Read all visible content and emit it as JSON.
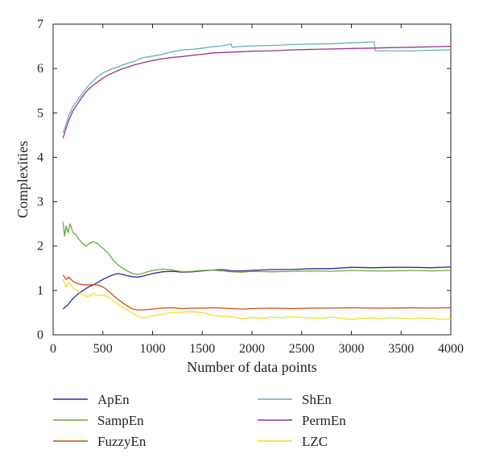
{
  "chart_data": {
    "type": "line",
    "title": "",
    "xlabel": "Number of data points",
    "ylabel": "Complexities",
    "xlim": [
      0,
      4000
    ],
    "ylim": [
      0,
      7
    ],
    "xticks": [
      0,
      500,
      1000,
      1500,
      2000,
      2500,
      3000,
      3500,
      4000
    ],
    "yticks": [
      0,
      1,
      2,
      3,
      4,
      5,
      6,
      7
    ],
    "grid": false,
    "legend_position": "below",
    "series": [
      {
        "name": "ApEn",
        "color": "#2b2a8c",
        "points": [
          [
            100,
            0.58
          ],
          [
            150,
            0.68
          ],
          [
            200,
            0.82
          ],
          [
            250,
            0.92
          ],
          [
            300,
            1.0
          ],
          [
            350,
            1.07
          ],
          [
            400,
            1.12
          ],
          [
            450,
            1.18
          ],
          [
            500,
            1.25
          ],
          [
            550,
            1.3
          ],
          [
            600,
            1.35
          ],
          [
            650,
            1.38
          ],
          [
            700,
            1.36
          ],
          [
            750,
            1.33
          ],
          [
            800,
            1.31
          ],
          [
            850,
            1.3
          ],
          [
            900,
            1.32
          ],
          [
            1000,
            1.38
          ],
          [
            1100,
            1.42
          ],
          [
            1200,
            1.43
          ],
          [
            1300,
            1.41
          ],
          [
            1400,
            1.42
          ],
          [
            1500,
            1.44
          ],
          [
            1600,
            1.46
          ],
          [
            1700,
            1.47
          ],
          [
            1800,
            1.44
          ],
          [
            1900,
            1.44
          ],
          [
            2000,
            1.45
          ],
          [
            2200,
            1.47
          ],
          [
            2400,
            1.47
          ],
          [
            2600,
            1.49
          ],
          [
            2800,
            1.49
          ],
          [
            3000,
            1.52
          ],
          [
            3200,
            1.51
          ],
          [
            3400,
            1.52
          ],
          [
            3600,
            1.52
          ],
          [
            3800,
            1.51
          ],
          [
            4000,
            1.53
          ]
        ]
      },
      {
        "name": "SampEn",
        "color": "#6aaa3a",
        "points": [
          [
            100,
            2.55
          ],
          [
            115,
            2.22
          ],
          [
            130,
            2.45
          ],
          [
            150,
            2.3
          ],
          [
            170,
            2.5
          ],
          [
            200,
            2.3
          ],
          [
            230,
            2.25
          ],
          [
            260,
            2.15
          ],
          [
            300,
            2.05
          ],
          [
            330,
            2.0
          ],
          [
            360,
            2.05
          ],
          [
            400,
            2.1
          ],
          [
            450,
            2.05
          ],
          [
            500,
            1.95
          ],
          [
            550,
            1.85
          ],
          [
            600,
            1.7
          ],
          [
            650,
            1.58
          ],
          [
            700,
            1.5
          ],
          [
            750,
            1.43
          ],
          [
            800,
            1.38
          ],
          [
            850,
            1.36
          ],
          [
            900,
            1.38
          ],
          [
            950,
            1.42
          ],
          [
            1000,
            1.45
          ],
          [
            1100,
            1.48
          ],
          [
            1200,
            1.46
          ],
          [
            1300,
            1.42
          ],
          [
            1400,
            1.43
          ],
          [
            1500,
            1.45
          ],
          [
            1600,
            1.46
          ],
          [
            1700,
            1.44
          ],
          [
            1800,
            1.42
          ],
          [
            1900,
            1.41
          ],
          [
            2000,
            1.43
          ],
          [
            2200,
            1.42
          ],
          [
            2400,
            1.43
          ],
          [
            2600,
            1.44
          ],
          [
            2800,
            1.43
          ],
          [
            3000,
            1.45
          ],
          [
            3200,
            1.44
          ],
          [
            3400,
            1.44
          ],
          [
            3600,
            1.45
          ],
          [
            3800,
            1.44
          ],
          [
            4000,
            1.45
          ]
        ]
      },
      {
        "name": "FuzzyEn",
        "color": "#d04a17",
        "points": [
          [
            100,
            1.35
          ],
          [
            130,
            1.25
          ],
          [
            160,
            1.3
          ],
          [
            200,
            1.2
          ],
          [
            250,
            1.15
          ],
          [
            300,
            1.13
          ],
          [
            350,
            1.12
          ],
          [
            400,
            1.13
          ],
          [
            450,
            1.12
          ],
          [
            500,
            1.08
          ],
          [
            550,
            1.0
          ],
          [
            600,
            0.9
          ],
          [
            650,
            0.8
          ],
          [
            700,
            0.72
          ],
          [
            750,
            0.65
          ],
          [
            800,
            0.58
          ],
          [
            850,
            0.56
          ],
          [
            900,
            0.56
          ],
          [
            1000,
            0.58
          ],
          [
            1100,
            0.6
          ],
          [
            1200,
            0.61
          ],
          [
            1300,
            0.59
          ],
          [
            1400,
            0.6
          ],
          [
            1500,
            0.6
          ],
          [
            1600,
            0.61
          ],
          [
            1700,
            0.6
          ],
          [
            1800,
            0.59
          ],
          [
            1900,
            0.58
          ],
          [
            2000,
            0.59
          ],
          [
            2200,
            0.6
          ],
          [
            2400,
            0.59
          ],
          [
            2600,
            0.6
          ],
          [
            2800,
            0.6
          ],
          [
            3000,
            0.61
          ],
          [
            3200,
            0.6
          ],
          [
            3400,
            0.6
          ],
          [
            3600,
            0.61
          ],
          [
            3800,
            0.6
          ],
          [
            4000,
            0.61
          ]
        ]
      },
      {
        "name": "ShEn",
        "color": "#5fb2b5",
        "points": [
          [
            100,
            4.55
          ],
          [
            130,
            4.75
          ],
          [
            160,
            4.95
          ],
          [
            200,
            5.15
          ],
          [
            250,
            5.3
          ],
          [
            300,
            5.45
          ],
          [
            350,
            5.6
          ],
          [
            400,
            5.72
          ],
          [
            450,
            5.82
          ],
          [
            500,
            5.9
          ],
          [
            550,
            5.95
          ],
          [
            600,
            6.0
          ],
          [
            650,
            6.03
          ],
          [
            700,
            6.08
          ],
          [
            750,
            6.12
          ],
          [
            800,
            6.15
          ],
          [
            850,
            6.2
          ],
          [
            900,
            6.24
          ],
          [
            1000,
            6.28
          ],
          [
            1100,
            6.32
          ],
          [
            1200,
            6.38
          ],
          [
            1300,
            6.42
          ],
          [
            1400,
            6.43
          ],
          [
            1500,
            6.46
          ],
          [
            1600,
            6.49
          ],
          [
            1700,
            6.51
          ],
          [
            1790,
            6.55
          ],
          [
            1800,
            6.48
          ],
          [
            1900,
            6.5
          ],
          [
            2000,
            6.51
          ],
          [
            2200,
            6.52
          ],
          [
            2400,
            6.54
          ],
          [
            2600,
            6.55
          ],
          [
            2800,
            6.56
          ],
          [
            3000,
            6.58
          ],
          [
            3200,
            6.6
          ],
          [
            3230,
            6.6
          ],
          [
            3240,
            6.4
          ],
          [
            3400,
            6.4
          ],
          [
            3600,
            6.4
          ],
          [
            3800,
            6.41
          ],
          [
            4000,
            6.42
          ]
        ]
      },
      {
        "name": "PermEn",
        "color": "#9b2e8e",
        "points": [
          [
            100,
            4.43
          ],
          [
            130,
            4.65
          ],
          [
            160,
            4.85
          ],
          [
            200,
            5.05
          ],
          [
            250,
            5.22
          ],
          [
            300,
            5.38
          ],
          [
            350,
            5.52
          ],
          [
            400,
            5.62
          ],
          [
            450,
            5.7
          ],
          [
            500,
            5.78
          ],
          [
            550,
            5.85
          ],
          [
            600,
            5.9
          ],
          [
            650,
            5.95
          ],
          [
            700,
            6.0
          ],
          [
            750,
            6.03
          ],
          [
            800,
            6.07
          ],
          [
            850,
            6.1
          ],
          [
            900,
            6.13
          ],
          [
            1000,
            6.18
          ],
          [
            1100,
            6.22
          ],
          [
            1200,
            6.25
          ],
          [
            1300,
            6.27
          ],
          [
            1400,
            6.3
          ],
          [
            1500,
            6.32
          ],
          [
            1600,
            6.35
          ],
          [
            1700,
            6.36
          ],
          [
            1800,
            6.37
          ],
          [
            1900,
            6.38
          ],
          [
            2000,
            6.39
          ],
          [
            2200,
            6.4
          ],
          [
            2400,
            6.42
          ],
          [
            2600,
            6.43
          ],
          [
            2800,
            6.44
          ],
          [
            3000,
            6.45
          ],
          [
            3200,
            6.46
          ],
          [
            3400,
            6.47
          ],
          [
            3600,
            6.48
          ],
          [
            3800,
            6.49
          ],
          [
            4000,
            6.5
          ]
        ]
      },
      {
        "name": "LZC",
        "color": "#f2e020",
        "points": [
          [
            100,
            1.25
          ],
          [
            130,
            1.08
          ],
          [
            160,
            1.18
          ],
          [
            200,
            1.05
          ],
          [
            250,
            0.98
          ],
          [
            300,
            0.9
          ],
          [
            350,
            0.86
          ],
          [
            400,
            0.93
          ],
          [
            450,
            0.88
          ],
          [
            500,
            0.9
          ],
          [
            550,
            0.85
          ],
          [
            600,
            0.78
          ],
          [
            650,
            0.68
          ],
          [
            700,
            0.62
          ],
          [
            750,
            0.55
          ],
          [
            800,
            0.48
          ],
          [
            850,
            0.42
          ],
          [
            900,
            0.38
          ],
          [
            950,
            0.4
          ],
          [
            1000,
            0.43
          ],
          [
            1100,
            0.47
          ],
          [
            1200,
            0.5
          ],
          [
            1300,
            0.51
          ],
          [
            1400,
            0.52
          ],
          [
            1500,
            0.5
          ],
          [
            1550,
            0.47
          ],
          [
            1600,
            0.44
          ],
          [
            1700,
            0.42
          ],
          [
            1800,
            0.4
          ],
          [
            1900,
            0.36
          ],
          [
            2000,
            0.39
          ],
          [
            2100,
            0.37
          ],
          [
            2200,
            0.4
          ],
          [
            2300,
            0.38
          ],
          [
            2400,
            0.41
          ],
          [
            2500,
            0.39
          ],
          [
            2600,
            0.38
          ],
          [
            2700,
            0.37
          ],
          [
            2800,
            0.4
          ],
          [
            2900,
            0.37
          ],
          [
            3000,
            0.35
          ],
          [
            3100,
            0.37
          ],
          [
            3200,
            0.38
          ],
          [
            3300,
            0.36
          ],
          [
            3400,
            0.39
          ],
          [
            3500,
            0.37
          ],
          [
            3600,
            0.36
          ],
          [
            3700,
            0.38
          ],
          [
            3800,
            0.37
          ],
          [
            3900,
            0.35
          ],
          [
            4000,
            0.36
          ]
        ]
      }
    ]
  }
}
